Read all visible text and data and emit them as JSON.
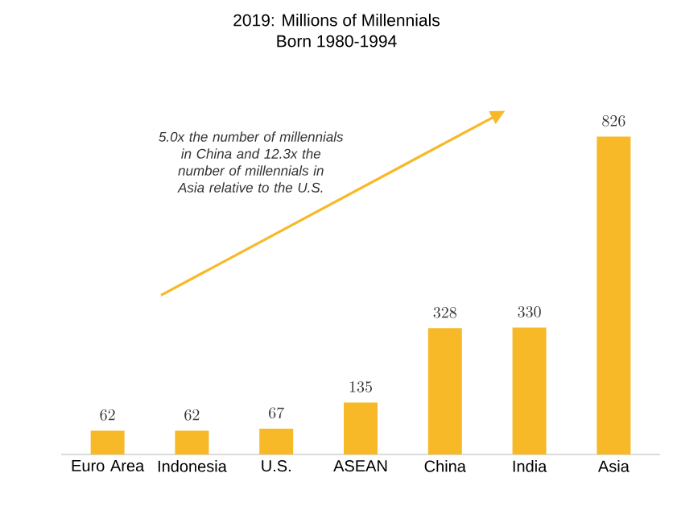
{
  "chart_data": {
    "type": "bar",
    "title": "2019: Millions of Millennials",
    "subtitle": "Born 1980-1994",
    "categories": [
      "Euro Area",
      "Indonesia",
      "U.S.",
      "ASEAN",
      "China",
      "India",
      "Asia"
    ],
    "values": [
      62,
      62,
      67,
      135,
      328,
      330,
      826
    ],
    "color": "#f7b928",
    "data_labels": true,
    "annotations": [
      "5.0x the number of millennials in China and 12.3x the number of millennials in Asia relative to the U.S."
    ]
  }
}
